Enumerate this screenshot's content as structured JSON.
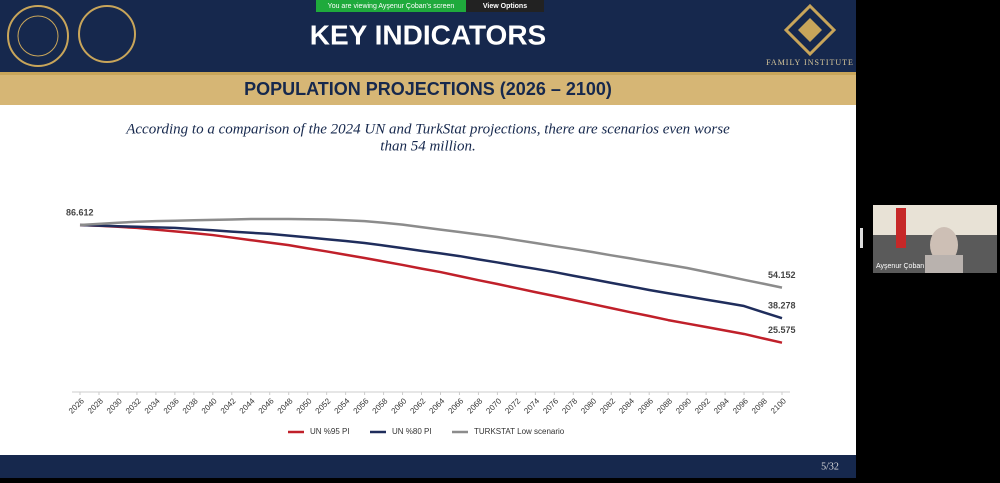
{
  "banner": {
    "viewing": "You are viewing  Ayşenur Çoban's screen",
    "options": "View Options"
  },
  "slide": {
    "title": "KEY INDICATORS",
    "institute": "FAMILY INSTITUTE",
    "section": "POPULATION PROJECTIONS (2026 – 2100)",
    "subtitle_line1": "According to a comparison of the 2024 UN and TurkStat projections, there are scenarios even worse",
    "subtitle_line2": "than 54 million.",
    "page": "5/32"
  },
  "participant": {
    "name": "Ayşenur Çoban"
  },
  "chart_data": {
    "type": "line",
    "x": [
      2026,
      2028,
      2030,
      2032,
      2034,
      2036,
      2038,
      2040,
      2042,
      2044,
      2046,
      2048,
      2050,
      2052,
      2054,
      2056,
      2058,
      2060,
      2062,
      2064,
      2066,
      2068,
      2070,
      2072,
      2074,
      2076,
      2078,
      2080,
      2082,
      2084,
      2086,
      2088,
      2090,
      2092,
      2094,
      2096,
      2098,
      2100
    ],
    "xlim": [
      2026,
      2100
    ],
    "ylim": [
      0,
      100
    ],
    "legend": "bottom",
    "series": [
      {
        "name": "UN %95 PI",
        "color": "#c0202a",
        "values": [
          86.612,
          86.2,
          85.7,
          85.1,
          84.2,
          83.3,
          82.4,
          81.4,
          80.1,
          78.8,
          77.5,
          76.2,
          74.5,
          72.9,
          71.2,
          69.5,
          67.7,
          65.9,
          64.0,
          62.2,
          60.1,
          58.0,
          56.0,
          53.9,
          51.8,
          49.8,
          47.7,
          45.6,
          43.5,
          41.4,
          39.4,
          37.3,
          35.5,
          33.7,
          31.9,
          30.1,
          27.8,
          25.575
        ]
      },
      {
        "name": "UN %80 PI",
        "color": "#1f2d5c",
        "values": [
          86.612,
          86.3,
          86.0,
          85.7,
          85.4,
          85.1,
          84.5,
          83.9,
          83.2,
          82.6,
          82.0,
          81.1,
          80.2,
          79.2,
          78.3,
          77.3,
          76.0,
          74.6,
          73.2,
          71.9,
          70.5,
          68.8,
          67.2,
          65.5,
          63.9,
          62.2,
          60.3,
          58.5,
          56.6,
          54.8,
          52.9,
          51.2,
          49.6,
          47.9,
          46.3,
          44.6,
          41.4,
          38.278
        ]
      },
      {
        "name": "TURKSTAT Low scenario",
        "color": "#8c8c8c",
        "values": [
          86.612,
          87.2,
          87.8,
          88.3,
          88.6,
          88.8,
          89.1,
          89.3,
          89.5,
          89.7,
          89.7,
          89.7,
          89.6,
          89.5,
          89.1,
          88.6,
          87.8,
          86.8,
          85.5,
          84.2,
          83.0,
          81.7,
          80.4,
          78.8,
          77.3,
          75.7,
          74.2,
          72.6,
          70.9,
          69.3,
          67.6,
          66.0,
          64.3,
          62.3,
          60.3,
          58.2,
          56.2,
          54.152
        ]
      }
    ]
  }
}
